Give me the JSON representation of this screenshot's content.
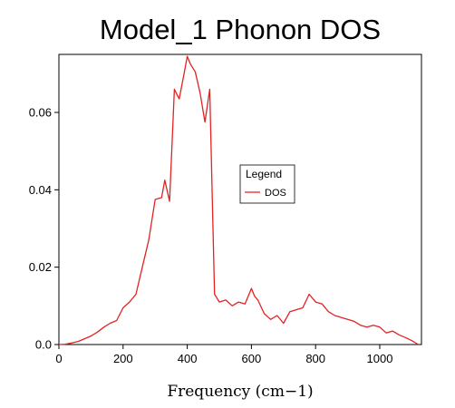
{
  "chart_data": {
    "type": "line",
    "title": "Model_1 Phonon DOS",
    "xlabel": "Frequency (cm−1)",
    "ylabel": "",
    "xlim": [
      0,
      1130
    ],
    "ylim": [
      0,
      0.075
    ],
    "x_ticks": [
      "0",
      "200",
      "400",
      "600",
      "800",
      "1000"
    ],
    "y_ticks": [
      "0.0",
      "0.02",
      "0.04",
      "0.06"
    ],
    "legend": {
      "title": "Legend",
      "position": "center-right"
    },
    "series": [
      {
        "name": "DOS",
        "color": "#e32222",
        "x": [
          0,
          20,
          40,
          60,
          80,
          100,
          120,
          140,
          160,
          180,
          200,
          220,
          240,
          260,
          280,
          300,
          320,
          330,
          345,
          360,
          375,
          390,
          400,
          410,
          425,
          440,
          455,
          470,
          485,
          500,
          520,
          540,
          560,
          580,
          600,
          610,
          620,
          640,
          660,
          680,
          700,
          720,
          740,
          760,
          780,
          800,
          820,
          840,
          860,
          880,
          900,
          920,
          940,
          960,
          980,
          1000,
          1020,
          1040,
          1060,
          1080,
          1100,
          1120
        ],
        "y": [
          0.0,
          0.0001,
          0.0004,
          0.0008,
          0.0015,
          0.0022,
          0.0032,
          0.0045,
          0.0055,
          0.0062,
          0.0095,
          0.011,
          0.013,
          0.02,
          0.027,
          0.0375,
          0.038,
          0.0425,
          0.037,
          0.066,
          0.0635,
          0.07,
          0.0745,
          0.0725,
          0.0705,
          0.065,
          0.0575,
          0.066,
          0.013,
          0.011,
          0.0115,
          0.01,
          0.011,
          0.0105,
          0.0145,
          0.0125,
          0.0115,
          0.008,
          0.0065,
          0.0075,
          0.0055,
          0.0085,
          0.009,
          0.0095,
          0.013,
          0.011,
          0.0105,
          0.0085,
          0.0075,
          0.007,
          0.0065,
          0.006,
          0.005,
          0.0045,
          0.005,
          0.0045,
          0.003,
          0.0035,
          0.0025,
          0.0018,
          0.001,
          0.0
        ]
      }
    ]
  }
}
